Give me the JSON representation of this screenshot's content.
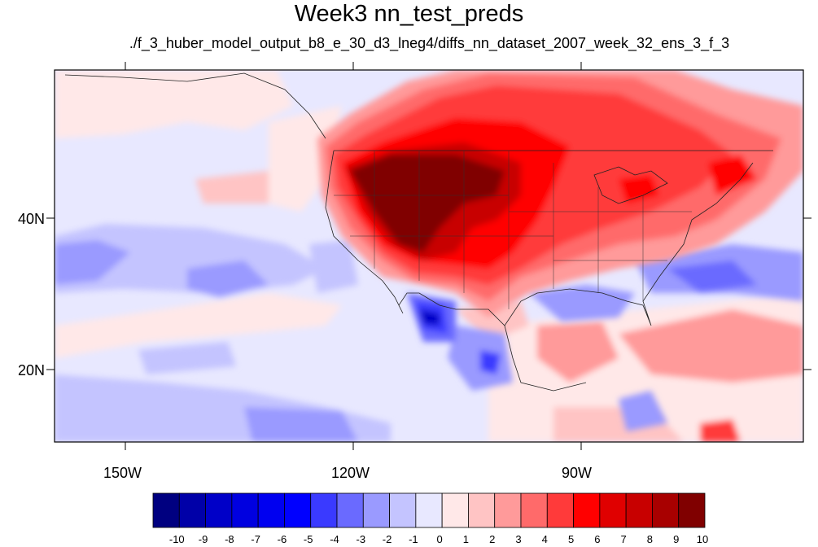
{
  "title": "Week3 nn_test_preds",
  "subtitle": "./f_3_huber_model_output_b8_e_30_d3_lneg4/diffs_nn_dataset_2007_week_32_ens_3_f_3",
  "axes": {
    "x_tick_labels": [
      "150W",
      "120W",
      "90W"
    ],
    "y_tick_labels": [
      "40N",
      "20N"
    ]
  },
  "colorbar": {
    "tick_labels": [
      "-10",
      "-9",
      "-8",
      "-7",
      "-6",
      "-5",
      "-4",
      "-3",
      "-2",
      "-1",
      "0",
      "1",
      "2",
      "3",
      "4",
      "5",
      "6",
      "7",
      "8",
      "9",
      "10"
    ],
    "colors": [
      "#000080",
      "#0000a8",
      "#0000c8",
      "#0000e0",
      "#0000f0",
      "#0000ff",
      "#3a3aff",
      "#6a6aff",
      "#9a9aff",
      "#c4c4ff",
      "#e8e8ff",
      "#ffe8e8",
      "#ffc4c4",
      "#ff9a9a",
      "#ff6a6a",
      "#ff3a3a",
      "#ff0000",
      "#e00000",
      "#c80000",
      "#a80000",
      "#800000"
    ]
  }
}
